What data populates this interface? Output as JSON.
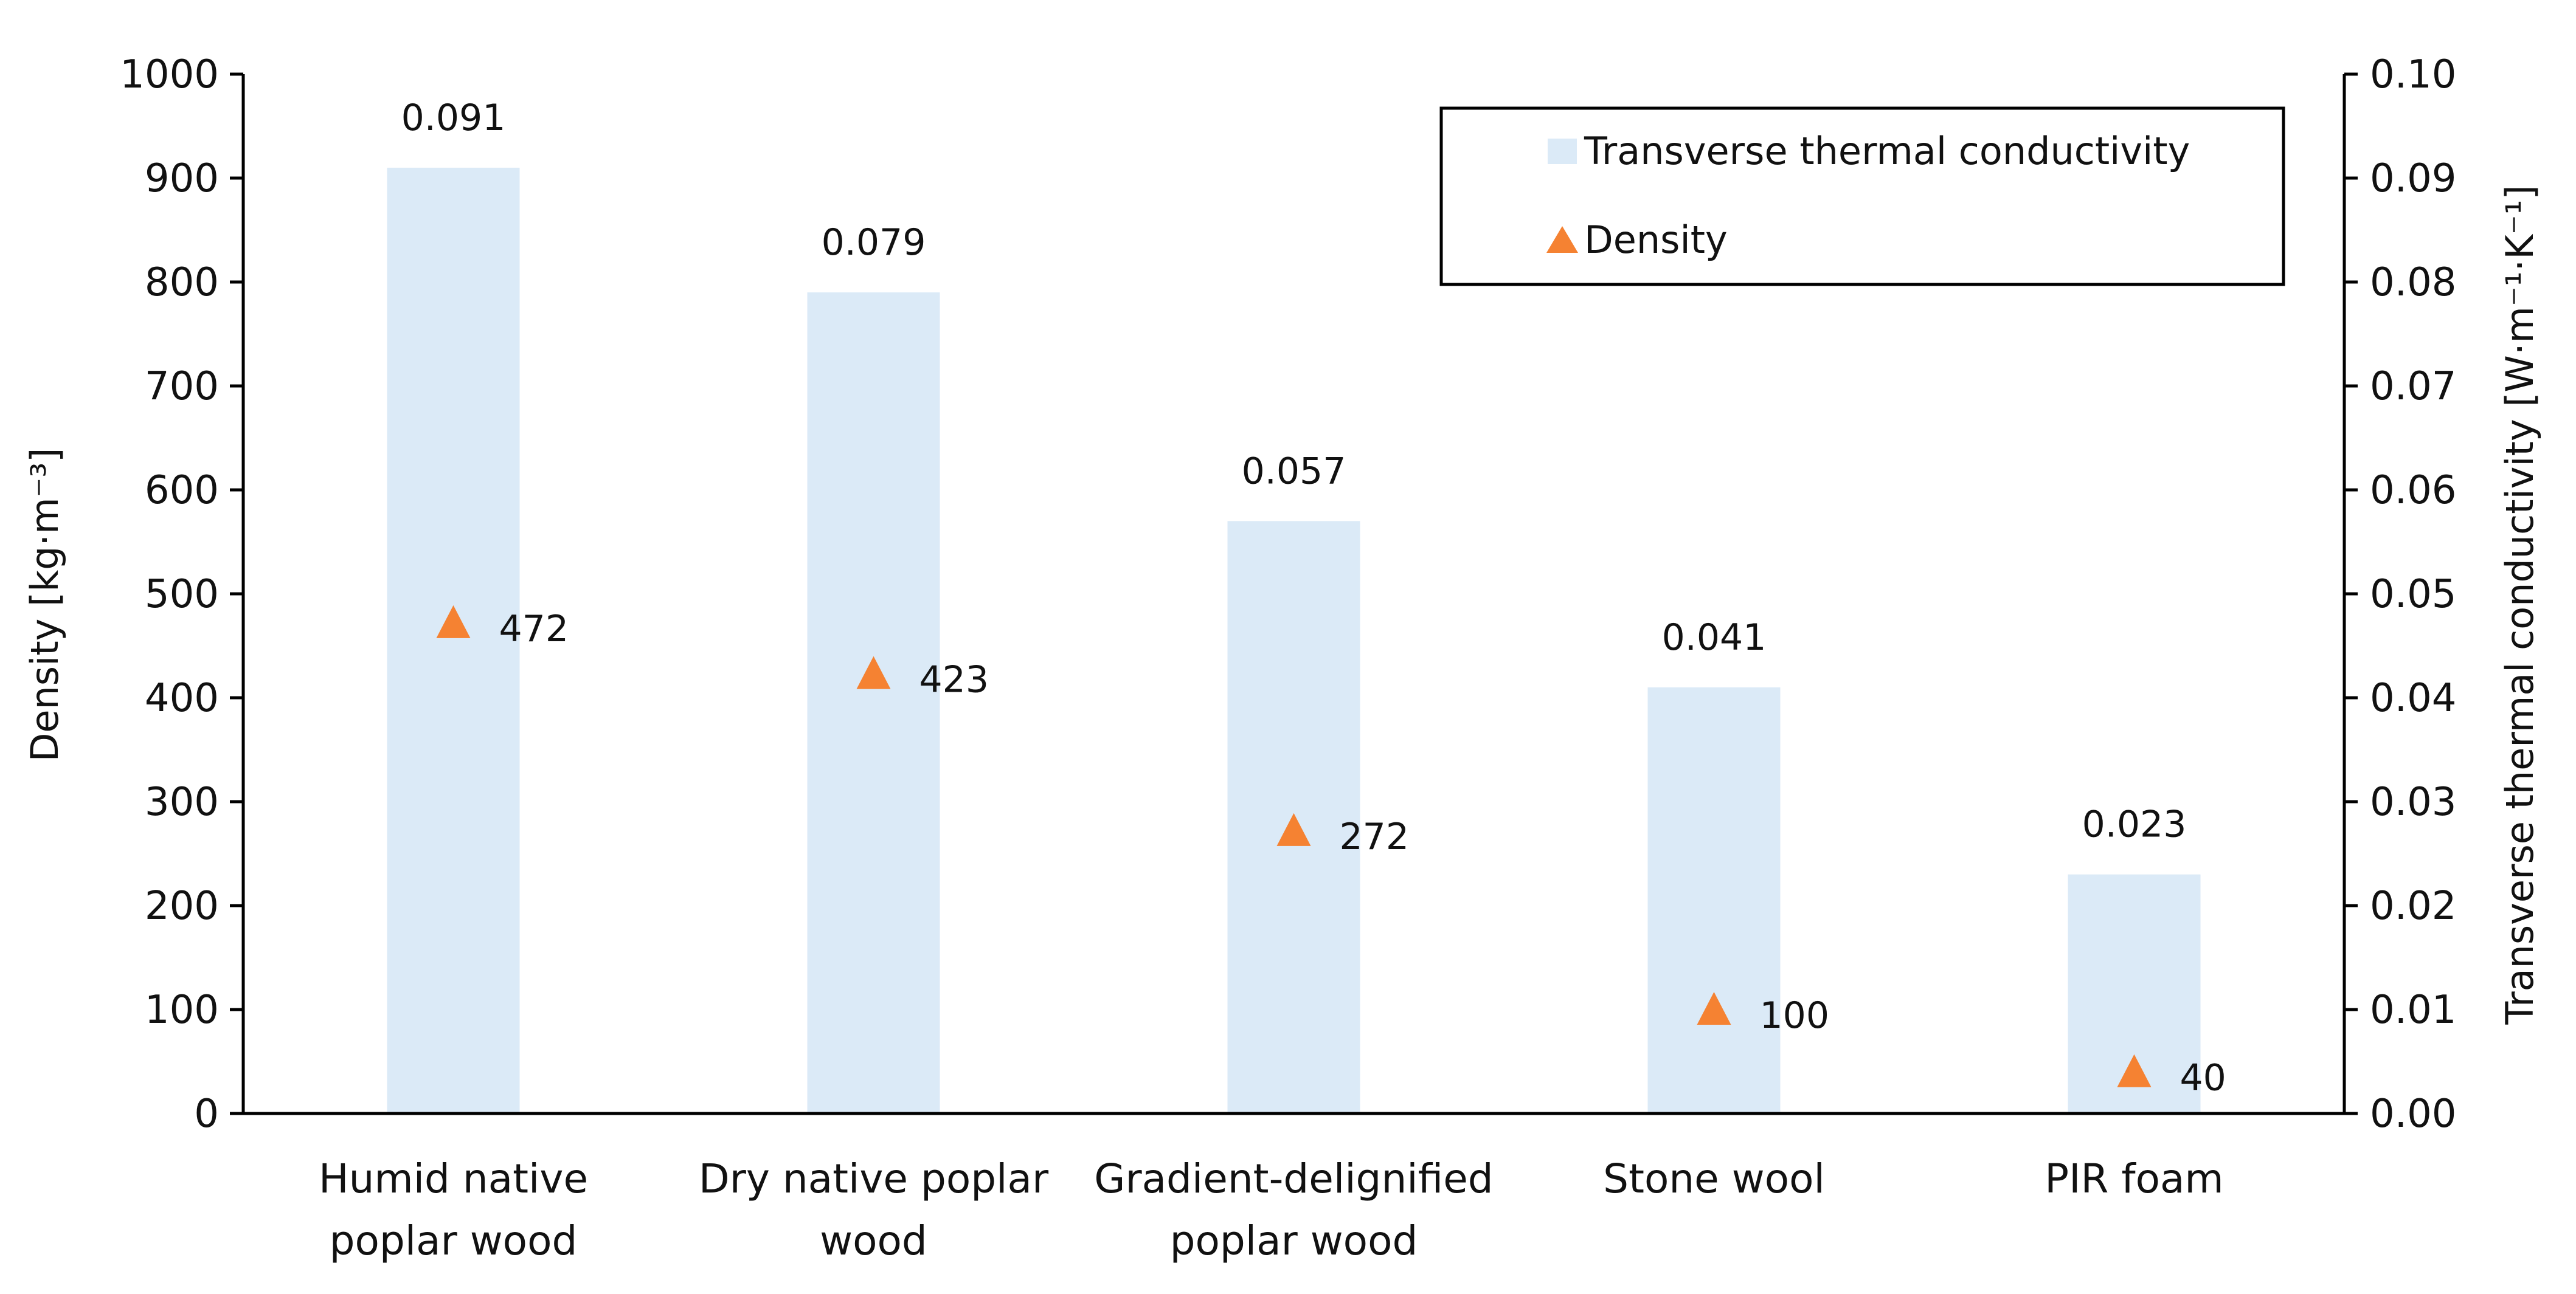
{
  "chart_data": {
    "type": "bar",
    "categories": [
      [
        "Humid native",
        "poplar wood"
      ],
      [
        "Dry native poplar",
        "wood"
      ],
      [
        "Gradient-delignified",
        "poplar wood"
      ],
      [
        "Stone wool"
      ],
      [
        "PIR foam"
      ]
    ],
    "series": [
      {
        "name": "Transverse thermal conductivity",
        "kind": "bar",
        "axis": "right",
        "color": "#dbeaf7",
        "values": [
          0.091,
          0.079,
          0.057,
          0.041,
          0.023
        ],
        "labels": [
          "0.091",
          "0.079",
          "0.057",
          "0.041",
          "0.023"
        ]
      },
      {
        "name": "Density",
        "kind": "scatter",
        "marker": "triangle",
        "axis": "left",
        "color": "#f58232",
        "values": [
          472,
          423,
          272,
          100,
          40
        ],
        "labels": [
          "472",
          "423",
          "272",
          "100",
          "40"
        ]
      }
    ],
    "left_axis": {
      "label": "Density [kg·m⁻³]",
      "ylim": [
        0,
        1000
      ],
      "ticks": [
        "0",
        "100",
        "200",
        "300",
        "400",
        "500",
        "600",
        "700",
        "800",
        "900",
        "1000"
      ]
    },
    "right_axis": {
      "label": "Transverse thermal conductivity [W·m⁻¹·K⁻¹]",
      "ylim": [
        0,
        0.1
      ],
      "ticks": [
        "0.00",
        "0.01",
        "0.02",
        "0.03",
        "0.04",
        "0.05",
        "0.06",
        "0.07",
        "0.08",
        "0.09",
        "0.10"
      ]
    },
    "legend_position": "top-right",
    "grid": false
  }
}
